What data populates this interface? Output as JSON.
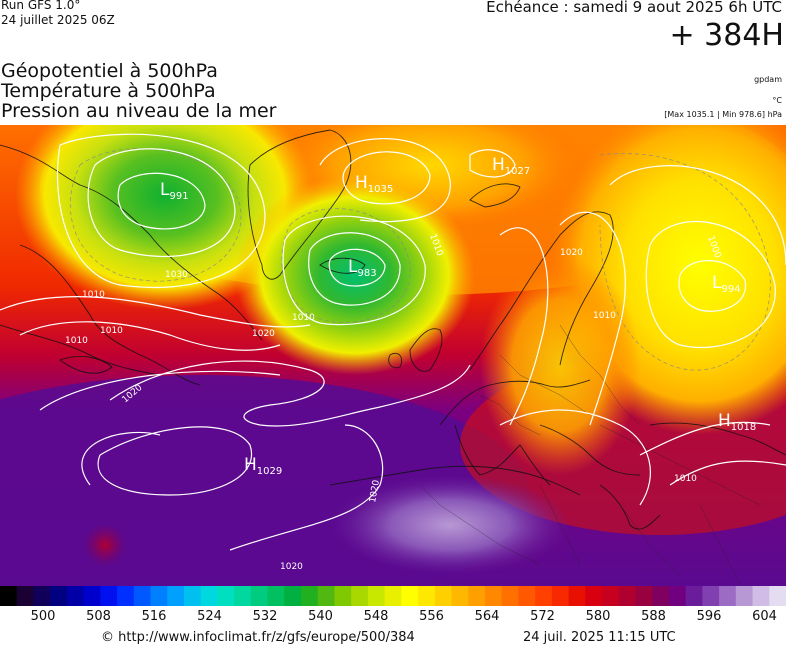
{
  "header": {
    "run_label": "Run GFS 1.0°",
    "run_date": "24 juillet 2025 06Z",
    "valid_time": "Echéance : samedi 9 aout 2025 6h UTC",
    "lead_time": "+ 384H"
  },
  "layers": {
    "geopotential": "Géopotentiel à 500hPa",
    "temperature": "Température à 500hPa",
    "pressure": "Pression au niveau de la mer"
  },
  "units": {
    "geopotential": "gpdam",
    "temperature": "°C",
    "pressure_range": "[Max 1035.1 | Min 978.6] hPa"
  },
  "pressure_centers": [
    {
      "type": "L",
      "value": "991"
    },
    {
      "type": "H",
      "value": "1035"
    },
    {
      "type": "L",
      "value": "983"
    },
    {
      "type": "H",
      "value": "1027"
    },
    {
      "type": "L",
      "value": "994"
    },
    {
      "type": "H",
      "value": "1029"
    },
    {
      "type": "H",
      "value": "1018"
    }
  ],
  "isobar_labels": [
    "1010",
    "1010",
    "1010",
    "1020",
    "1020",
    "1020",
    "1020",
    "1010",
    "1010",
    "1020",
    "1030",
    "1010",
    "1000",
    "1010"
  ],
  "colorbar": {
    "ticks": [
      "500",
      "508",
      "516",
      "524",
      "532",
      "540",
      "548",
      "556",
      "564",
      "572",
      "580",
      "588",
      "596",
      "604"
    ],
    "colors": [
      "#000000",
      "#1a0033",
      "#10005a",
      "#000080",
      "#0000a6",
      "#0000cc",
      "#0010ee",
      "#0030ff",
      "#0058ff",
      "#0080ff",
      "#00a0ff",
      "#00c0f0",
      "#00d8e0",
      "#00e0c0",
      "#00d8a0",
      "#00cc80",
      "#00c060",
      "#00b040",
      "#20b020",
      "#50b810",
      "#80c800",
      "#a8d800",
      "#c8e800",
      "#e8f000",
      "#ffff00",
      "#ffe800",
      "#ffd000",
      "#ffb800",
      "#ffa000",
      "#ff8800",
      "#ff7000",
      "#ff5800",
      "#ff4000",
      "#f82800",
      "#e81000",
      "#d80010",
      "#c80020",
      "#b00030",
      "#980040",
      "#800060",
      "#700080",
      "#6a1c9a",
      "#8040b0",
      "#9c6cc4",
      "#b898d4",
      "#d0bce4",
      "#e4dcf0"
    ]
  },
  "footer": {
    "credit": "© http://www.infoclimat.fr/z/gfs/europe/500/384",
    "generated": "24 juil. 2025 11:15 UTC"
  }
}
